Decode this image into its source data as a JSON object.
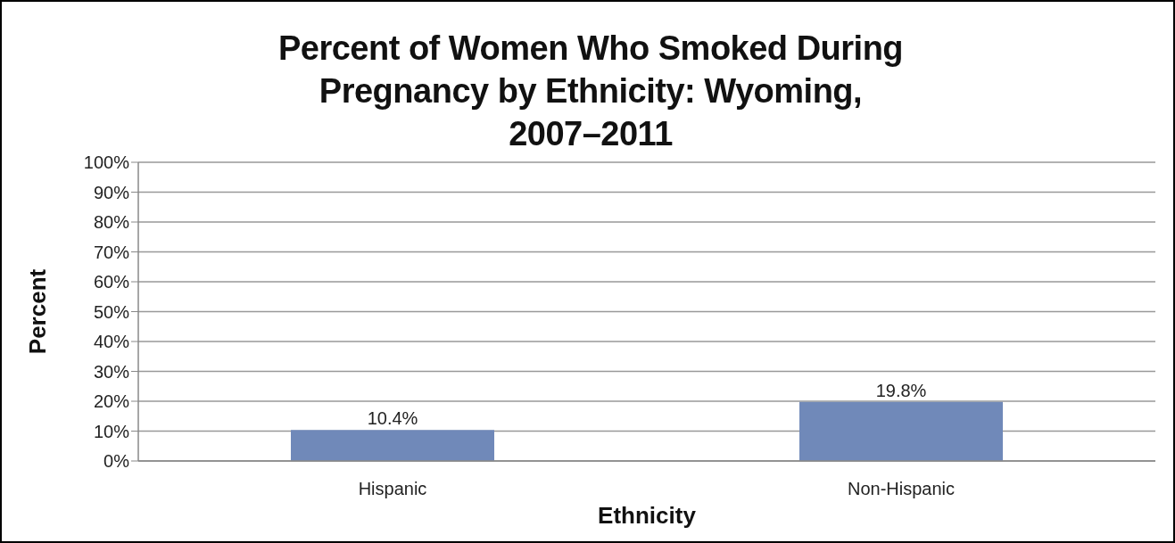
{
  "chart_data": {
    "type": "bar",
    "title": "Percent of Women Who Smoked During Pregnancy by Ethnicity: Wyoming, 2007–2011",
    "xlabel": "Ethnicity",
    "ylabel": "Percent",
    "categories": [
      "Hispanic",
      "Non-Hispanic"
    ],
    "values": [
      10.4,
      19.8
    ],
    "color": "#7089b9",
    "value_labels": [
      "10.4%",
      "19.8%"
    ],
    "ylim": [
      0,
      100
    ],
    "yticks": [
      {
        "value": 0,
        "label": "0%"
      },
      {
        "value": 10,
        "label": "10%"
      },
      {
        "value": 20,
        "label": "20%"
      },
      {
        "value": 30,
        "label": "30%"
      },
      {
        "value": 40,
        "label": "40%"
      },
      {
        "value": 50,
        "label": "50%"
      },
      {
        "value": 60,
        "label": "60%"
      },
      {
        "value": 70,
        "label": "70%"
      },
      {
        "value": 80,
        "label": "80%"
      },
      {
        "value": 90,
        "label": "90%"
      },
      {
        "value": 100,
        "label": "100%"
      }
    ],
    "grid": "y",
    "legend": false
  }
}
